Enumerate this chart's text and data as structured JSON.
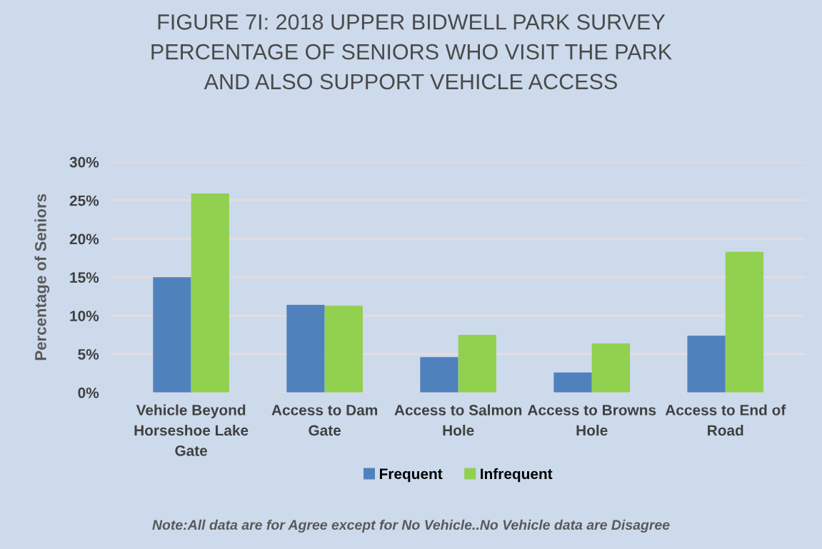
{
  "chart_data": {
    "type": "bar",
    "title": "FIGURE 7I: 2018 UPPER BIDWELL PARK SURVEY\nPERCENTAGE OF SENIORS WHO VISIT THE PARK\nAND ALSO SUPPORT VEHICLE ACCESS",
    "ylabel": "Percentage of Seniors",
    "categories": [
      "Vehicle Beyond\nHorseshoe Lake\nGate",
      "Access to Dam\nGate",
      "Access to Salmon\nHole",
      "Access to Browns\nHole",
      "Access to End of\nRoad"
    ],
    "series": [
      {
        "name": "Frequent",
        "color": "#4f81bd",
        "values": [
          15.0,
          11.4,
          4.6,
          2.6,
          7.4
        ]
      },
      {
        "name": "Infrequent",
        "color": "#92d050",
        "values": [
          25.9,
          11.3,
          7.5,
          6.4,
          18.3
        ]
      }
    ],
    "ylim": [
      0,
      30
    ],
    "yticks": [
      {
        "value": 0,
        "label": "0%"
      },
      {
        "value": 5,
        "label": "5%"
      },
      {
        "value": 10,
        "label": "10%"
      },
      {
        "value": 15,
        "label": "15%"
      },
      {
        "value": 20,
        "label": "20%"
      },
      {
        "value": 25,
        "label": "25%"
      },
      {
        "value": 30,
        "label": "30%"
      }
    ],
    "grid": "y",
    "legend": "bottom",
    "annotations": [
      "Note:All data are for Agree except for No Vehicle..No Vehicle data are Disagree"
    ]
  }
}
